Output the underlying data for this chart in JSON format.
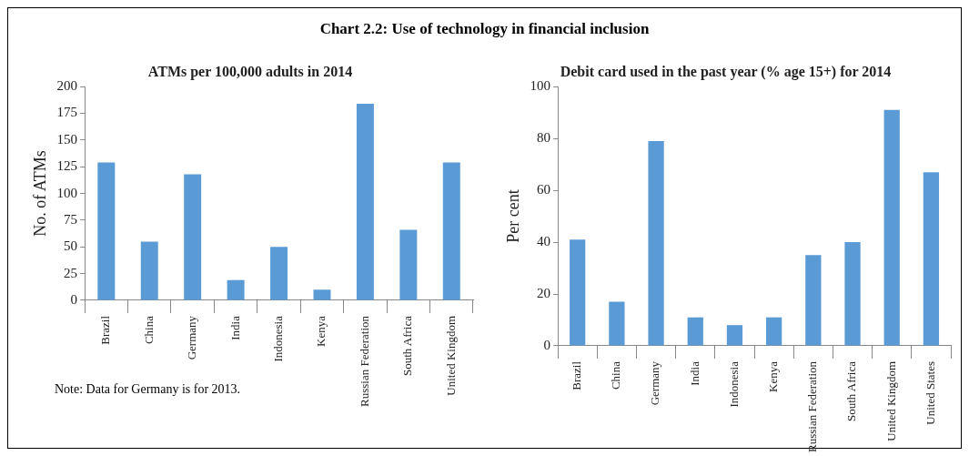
{
  "chart_data": [
    {
      "type": "other",
      "title": "Chart 2.2: Use of technology in financial inclusion"
    },
    {
      "type": "bar",
      "title": "ATMs per 100,000 adults in 2014",
      "ylabel": "No. of ATMs",
      "categories": [
        "Brazil",
        "China",
        "Germany",
        "India",
        "Indonesia",
        "Kenya",
        "Russian Federation",
        "South Africa",
        "United Kingdom"
      ],
      "values": [
        129,
        55,
        118,
        19,
        50,
        10,
        184,
        66,
        129
      ],
      "color": "#5b9bd5",
      "ylim": [
        0,
        200
      ],
      "yticks": [
        0,
        25,
        50,
        75,
        100,
        125,
        150,
        175,
        200
      ],
      "grid": false,
      "legend": false,
      "annotations": [
        "Note: Data for Germany is for 2013."
      ]
    },
    {
      "type": "bar",
      "title": "Debit card used in the past year (% age 15+) for 2014",
      "ylabel": "Per cent",
      "categories": [
        "Brazil",
        "China",
        "Germany",
        "India",
        "Indonesia",
        "Kenya",
        "Russian Federation",
        "South Africa",
        "United Kingdom",
        "United States"
      ],
      "values": [
        41,
        17,
        79,
        11,
        8,
        11,
        35,
        40,
        91,
        67
      ],
      "color": "#5b9bd5",
      "ylim": [
        0,
        100
      ],
      "yticks": [
        0,
        20,
        40,
        60,
        80,
        100
      ],
      "grid": false,
      "legend": false
    }
  ]
}
